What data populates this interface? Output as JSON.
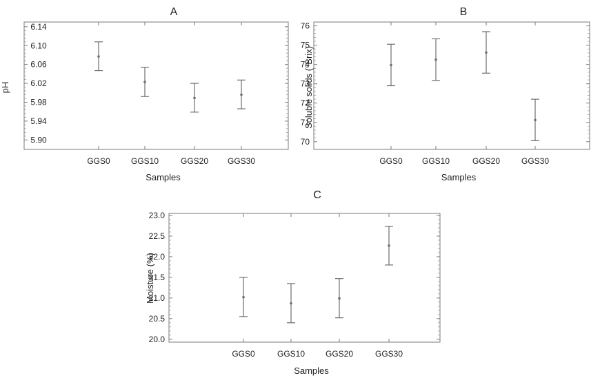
{
  "chart_data": [
    {
      "type": "errorbar",
      "title": "A",
      "xlabel": "Samples",
      "ylabel": "pH",
      "categories": [
        "GGS0",
        "GGS10",
        "GGS20",
        "GGS30"
      ],
      "values": [
        6.077,
        6.023,
        5.989,
        5.996
      ],
      "lower": [
        6.047,
        5.992,
        5.959,
        5.966
      ],
      "upper": [
        6.108,
        6.054,
        6.02,
        6.027
      ],
      "ylim": [
        5.88,
        6.15
      ],
      "yticks": [
        "5.90",
        "5.94",
        "5.98",
        "6.02",
        "6.06",
        "6.10",
        "6.14"
      ],
      "grid": false
    },
    {
      "type": "errorbar",
      "title": "B",
      "xlabel": "Samples",
      "ylabel": "Soluble solids (°Brix)",
      "categories": [
        "GGS0",
        "GGS10",
        "GGS20",
        "GGS30"
      ],
      "values": [
        73.97,
        74.25,
        74.62,
        71.12
      ],
      "lower": [
        72.9,
        73.17,
        73.55,
        70.05
      ],
      "upper": [
        75.05,
        75.33,
        75.7,
        72.2
      ],
      "ylim": [
        69.6,
        76.2
      ],
      "yticks": [
        "70",
        "71",
        "72",
        "73",
        "74",
        "75",
        "76"
      ],
      "grid": false
    },
    {
      "type": "errorbar",
      "title": "C",
      "xlabel": "Samples",
      "ylabel": "Moisture (%)",
      "categories": [
        "GGS0",
        "GGS10",
        "GGS20",
        "GGS30"
      ],
      "values": [
        21.02,
        20.87,
        20.99,
        22.27
      ],
      "lower": [
        20.55,
        20.4,
        20.52,
        21.8
      ],
      "upper": [
        21.5,
        21.35,
        21.47,
        22.74
      ],
      "ylim": [
        19.93,
        23.05
      ],
      "yticks": [
        "20.0",
        "20.5",
        "21.0",
        "21.5",
        "22.0",
        "22.5",
        "23.0"
      ],
      "grid": false
    }
  ]
}
